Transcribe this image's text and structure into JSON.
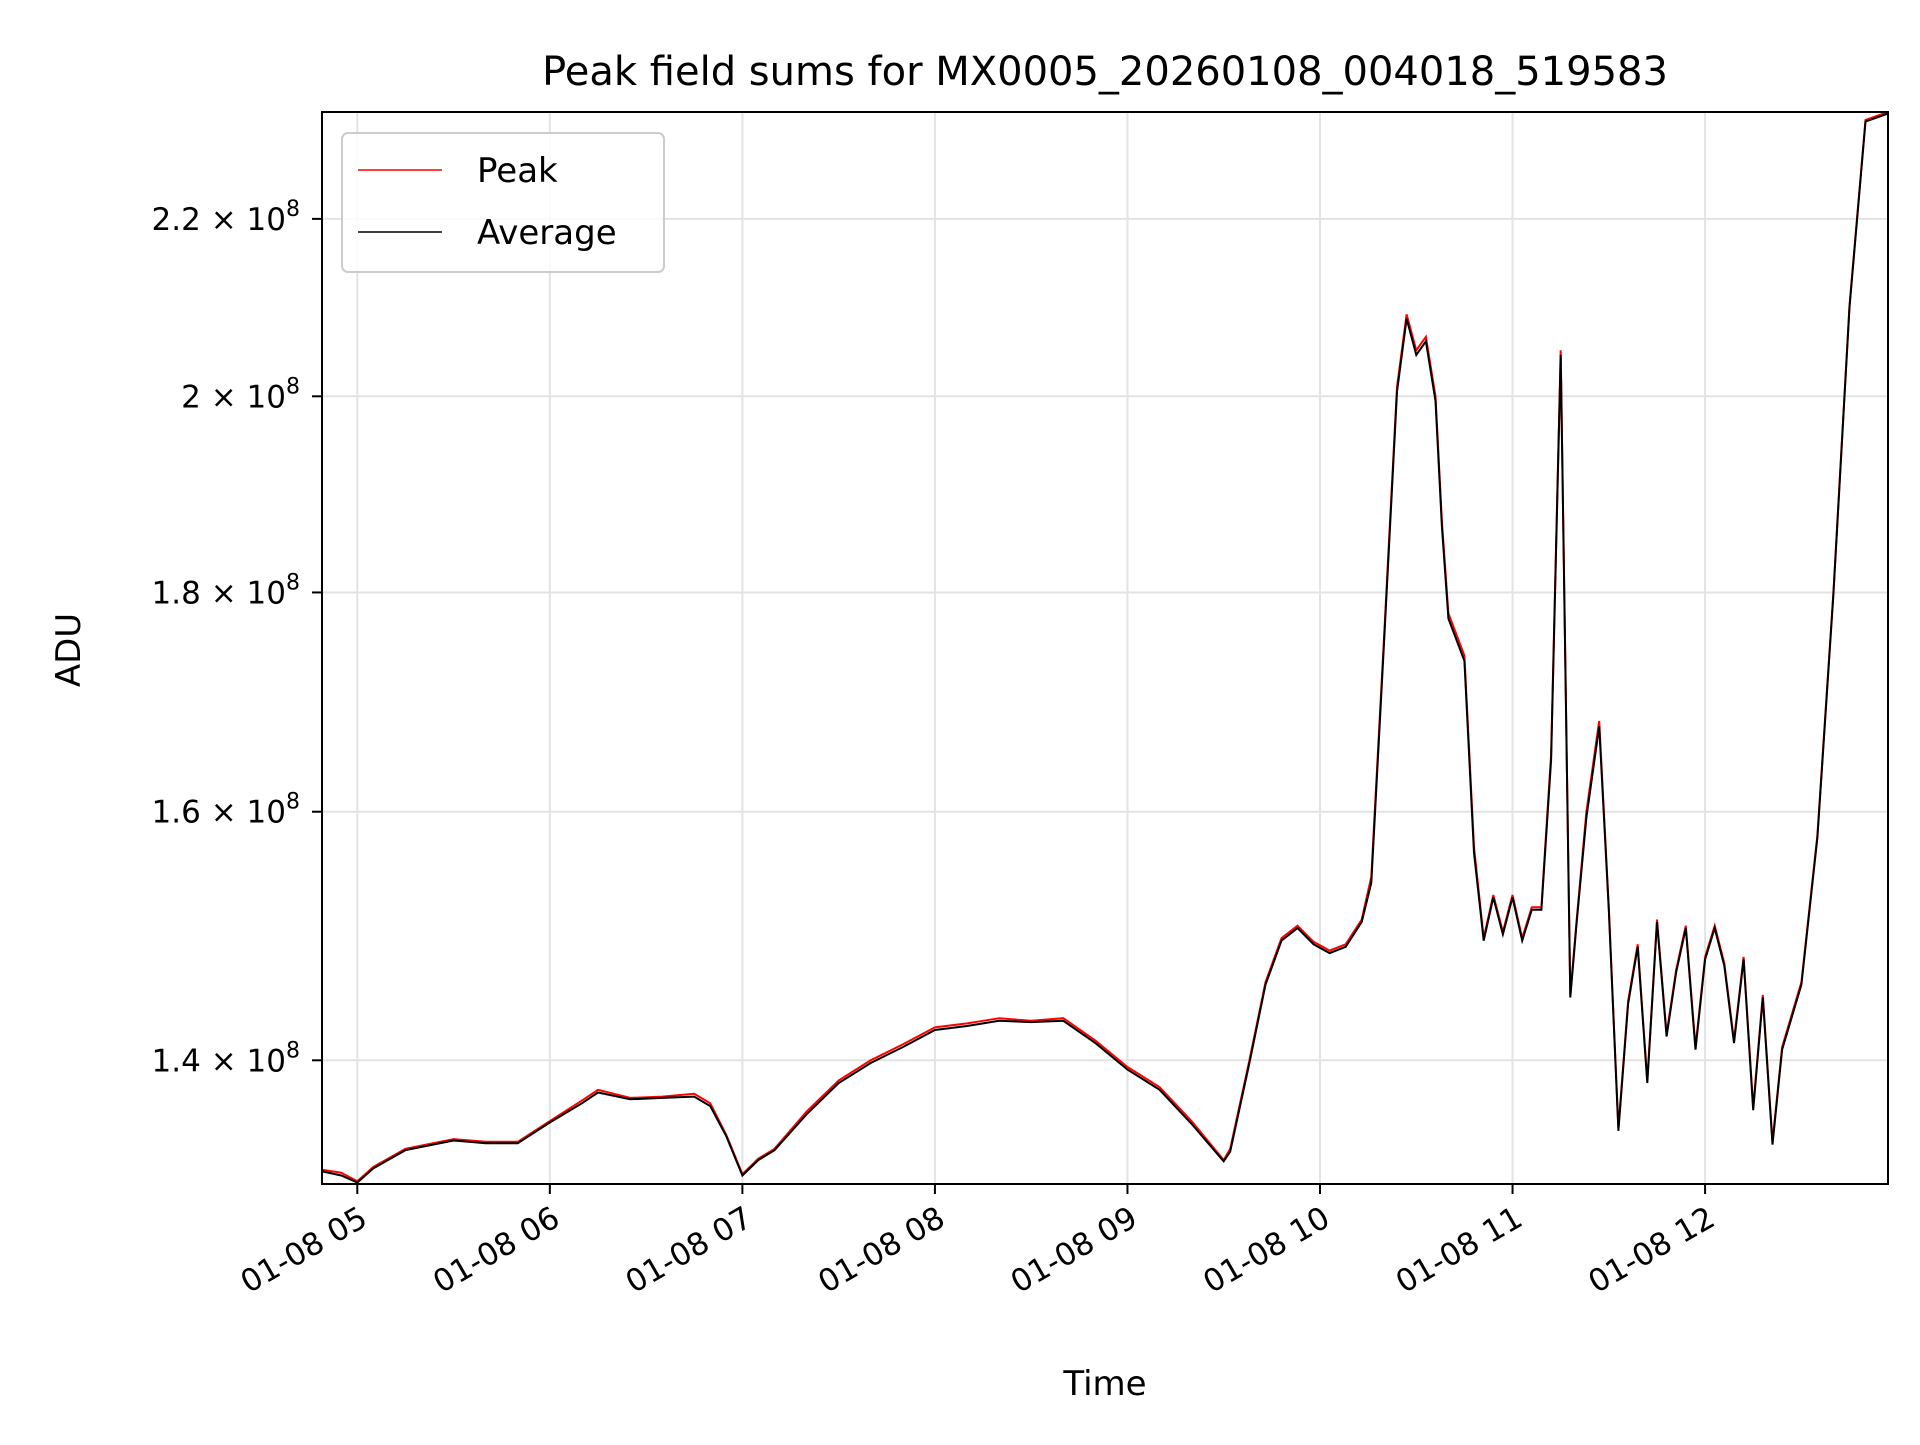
{
  "chart_data": {
    "type": "line",
    "title": "Peak field sums for MX0005_20260108_004018_519583",
    "xlabel": "Time",
    "ylabel": "ADU",
    "y_scale": "log",
    "xlim": [
      "01-08 04:49",
      "01-08 12:57"
    ],
    "ylim": [
      131000000,
      233000000
    ],
    "x_ticks": [
      "01-08 05",
      "01-08 06",
      "01-08 07",
      "01-08 08",
      "01-08 09",
      "01-08 10",
      "01-08 11",
      "01-08 12"
    ],
    "y_ticks": [
      {
        "value": 140000000,
        "mantissa": "1.4",
        "base": "10",
        "exp": "8"
      },
      {
        "value": 160000000,
        "mantissa": "1.6",
        "base": "10",
        "exp": "8"
      },
      {
        "value": 180000000,
        "mantissa": "1.8",
        "base": "10",
        "exp": "8"
      },
      {
        "value": 200000000,
        "mantissa": "2",
        "base": "10",
        "exp": "8"
      },
      {
        "value": 220000000,
        "mantissa": "2.2",
        "base": "10",
        "exp": "8"
      }
    ],
    "grid": true,
    "legend": {
      "position": "top-left"
    },
    "series": [
      {
        "name": "Peak",
        "color": "#ff0000"
      },
      {
        "name": "Average",
        "color": "#000000"
      }
    ],
    "x": [
      "01-08 04:49",
      "01-08 04:55",
      "01-08 05:00",
      "01-08 05:05",
      "01-08 05:15",
      "01-08 05:30",
      "01-08 05:40",
      "01-08 05:50",
      "01-08 06:00",
      "01-08 06:10",
      "01-08 06:15",
      "01-08 06:25",
      "01-08 06:35",
      "01-08 06:45",
      "01-08 06:50",
      "01-08 06:55",
      "01-08 07:00",
      "01-08 07:05",
      "01-08 07:10",
      "01-08 07:20",
      "01-08 07:30",
      "01-08 07:40",
      "01-08 07:50",
      "01-08 08:00",
      "01-08 08:10",
      "01-08 08:15",
      "01-08 08:20",
      "01-08 08:30",
      "01-08 08:40",
      "01-08 08:50",
      "01-08 09:00",
      "01-08 09:10",
      "01-08 09:20",
      "01-08 09:30",
      "01-08 09:32",
      "01-08 09:38",
      "01-08 09:43",
      "01-08 09:48",
      "01-08 09:53",
      "01-08 09:58",
      "01-08 10:03",
      "01-08 10:08",
      "01-08 10:13",
      "01-08 10:16",
      "01-08 10:20",
      "01-08 10:24",
      "01-08 10:27",
      "01-08 10:30",
      "01-08 10:33",
      "01-08 10:36",
      "01-08 10:38",
      "01-08 10:40",
      "01-08 10:45",
      "01-08 10:48",
      "01-08 10:51",
      "01-08 10:54",
      "01-08 10:57",
      "01-08 11:00",
      "01-08 11:03",
      "01-08 11:06",
      "01-08 11:09",
      "01-08 11:12",
      "01-08 11:15",
      "01-08 11:18",
      "01-08 11:20",
      "01-08 11:23",
      "01-08 11:27",
      "01-08 11:30",
      "01-08 11:33",
      "01-08 11:36",
      "01-08 11:39",
      "01-08 11:42",
      "01-08 11:45",
      "01-08 11:48",
      "01-08 11:51",
      "01-08 11:54",
      "01-08 11:57",
      "01-08 12:00",
      "01-08 12:03",
      "01-08 12:06",
      "01-08 12:09",
      "01-08 12:12",
      "01-08 12:15",
      "01-08 12:18",
      "01-08 12:21",
      "01-08 12:24",
      "01-08 12:30",
      "01-08 12:35",
      "01-08 12:40",
      "01-08 12:45",
      "01-08 12:50",
      "01-08 12:57"
    ],
    "y_peak": [
      132000000,
      131800000,
      131200000,
      132200000,
      133500000,
      134200000,
      134000000,
      134000000,
      135500000,
      137000000,
      137800000,
      137200000,
      137300000,
      137500000,
      136800000,
      134500000,
      131700000,
      132800000,
      133500000,
      136200000,
      138500000,
      140000000,
      141200000,
      142500000,
      142800000,
      143000000,
      143200000,
      143000000,
      143200000,
      141500000,
      139500000,
      138000000,
      135500000,
      132700000,
      133500000,
      140000000,
      146000000,
      149500000,
      150500000,
      149200000,
      148500000,
      149000000,
      151000000,
      154500000,
      176000000,
      201000000,
      209000000,
      205000000,
      206500000,
      200000000,
      187000000,
      178000000,
      174000000,
      157000000,
      149500000,
      153000000,
      150000000,
      153000000,
      149500000,
      152000000,
      152000000,
      165000000,
      205000000,
      145000000,
      151000000,
      160000000,
      168000000,
      152000000,
      135000000,
      144500000,
      149000000,
      138500000,
      151000000,
      142000000,
      147000000,
      150500000,
      141000000,
      148000000,
      150500000,
      147500000,
      141500000,
      148000000,
      136500000,
      145000000,
      134000000,
      141000000,
      146000000,
      158000000,
      180000000,
      210000000,
      232000000,
      233000000
    ],
    "y_average": [
      131900000,
      131600000,
      131100000,
      132100000,
      133400000,
      134100000,
      133900000,
      133900000,
      135400000,
      136800000,
      137600000,
      137100000,
      137200000,
      137300000,
      136600000,
      134400000,
      131600000,
      132700000,
      133400000,
      136000000,
      138300000,
      139800000,
      141000000,
      142300000,
      142600000,
      142800000,
      143000000,
      142900000,
      143000000,
      141300000,
      139300000,
      137800000,
      135300000,
      132600000,
      133300000,
      139800000,
      145800000,
      149300000,
      150300000,
      149000000,
      148300000,
      148800000,
      150800000,
      154000000,
      175500000,
      200500000,
      208500000,
      204500000,
      206000000,
      199500000,
      186500000,
      177500000,
      173500000,
      156500000,
      149300000,
      152800000,
      149800000,
      152800000,
      149300000,
      151800000,
      151800000,
      164500000,
      204500000,
      144800000,
      150800000,
      159500000,
      167500000,
      151800000,
      134800000,
      144300000,
      148800000,
      138300000,
      150800000,
      141800000,
      146800000,
      150300000,
      140800000,
      147800000,
      150300000,
      147300000,
      141300000,
      147800000,
      136300000,
      144800000,
      133800000,
      140800000,
      145800000,
      157800000,
      179800000,
      209800000,
      231800000,
      232800000
    ]
  }
}
